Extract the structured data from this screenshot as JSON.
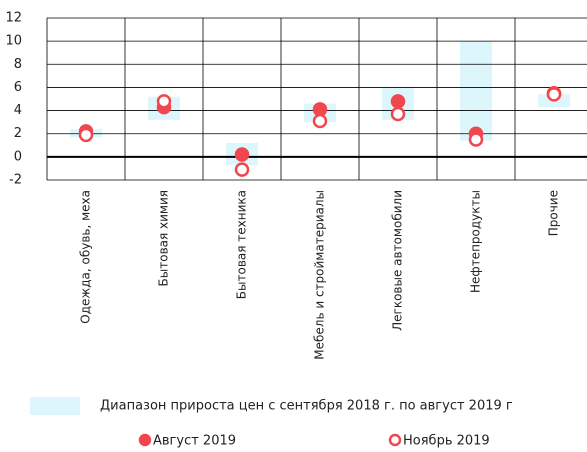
{
  "chart_data": {
    "type": "range_dot",
    "categories": [
      "Одежда, обувь, меха",
      "Бытовая химия",
      "Бытовая техника",
      "Мебель и стройматериалы",
      "Легковые автомобили",
      "Нефтепродукты",
      "Прочие"
    ],
    "range": {
      "name": "Диапазон прироста цен с сентября 2018 г. по август 2019 г",
      "color": "#dcf6fc",
      "low": [
        1.7,
        3.2,
        -0.7,
        3.0,
        3.2,
        1.4,
        4.3
      ],
      "high": [
        2.4,
        5.2,
        1.2,
        4.6,
        6.0,
        10.0,
        5.4
      ]
    },
    "series": [
      {
        "name": "Август 2019",
        "color": "#f0474e",
        "marker": "filled",
        "values": [
          2.2,
          4.3,
          0.2,
          4.1,
          4.8,
          2.0,
          5.5
        ]
      },
      {
        "name": "Ноябрь 2019",
        "color": "#f0474e",
        "marker": "hollow",
        "values": [
          1.9,
          4.8,
          -1.1,
          3.1,
          3.7,
          1.5,
          5.4
        ]
      }
    ],
    "ylim": [
      -2,
      12
    ],
    "yticks": [
      -2,
      0,
      2,
      4,
      6,
      8,
      10,
      12
    ],
    "grid": true
  }
}
